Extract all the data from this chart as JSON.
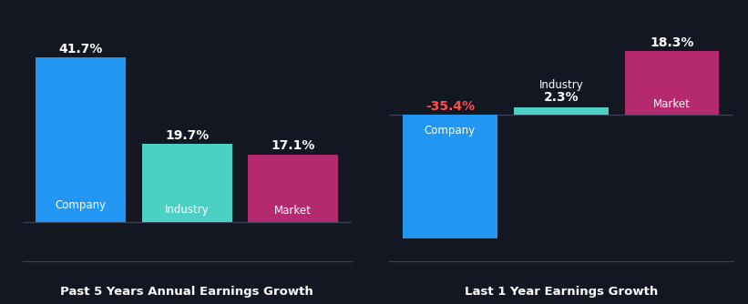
{
  "background_color": "#131722",
  "left_panel": {
    "title": "Past 5 Years Annual Earnings Growth",
    "bars": [
      {
        "label": "Company",
        "value": 41.7,
        "color": "#2196f3"
      },
      {
        "label": "Industry",
        "value": 19.7,
        "color": "#4dd0c4"
      },
      {
        "label": "Market",
        "value": 17.1,
        "color": "#b5296e"
      }
    ],
    "ylim_min": -10,
    "ylim_max": 50
  },
  "right_panel": {
    "title": "Last 1 Year Earnings Growth",
    "bars": [
      {
        "label": "Company",
        "value": -35.4,
        "color": "#2196f3"
      },
      {
        "label": "Industry",
        "value": 2.3,
        "color": "#4dd0c4"
      },
      {
        "label": "Market",
        "value": 18.3,
        "color": "#b5296e"
      }
    ],
    "ylim_min": -42,
    "ylim_max": 26
  },
  "bar_width": 0.85,
  "bar_gap": 0.02,
  "text_color": "#ffffff",
  "label_fontsize": 8.5,
  "value_fontsize": 10,
  "title_fontsize": 9.5,
  "negative_value_color": "#ff4d4d",
  "axis_line_color": "#3a3f55"
}
